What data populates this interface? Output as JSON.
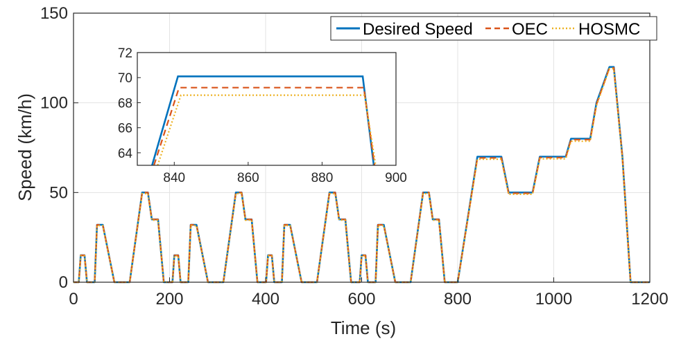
{
  "chart_data": [
    {
      "type": "line",
      "xlabel": "Time (s)",
      "ylabel": "Speed (km/h)",
      "xlim": [
        0,
        1200
      ],
      "ylim": [
        0,
        150
      ],
      "xticks": [
        "0",
        "200",
        "400",
        "600",
        "800",
        "1000",
        "1200"
      ],
      "yticks": [
        "0",
        "50",
        "100",
        "150"
      ],
      "grid": true,
      "legend_position": "top-right",
      "series": [
        {
          "name": "Desired Speed",
          "color": "#0072BD",
          "style": "solid"
        },
        {
          "name": "OEC",
          "color": "#D95319",
          "style": "dashed"
        },
        {
          "name": "HOSMC",
          "color": "#EDB120",
          "style": "dotted"
        }
      ],
      "x": [
        0,
        11,
        15,
        23,
        28,
        44,
        49,
        61,
        85,
        96,
        117,
        143,
        155,
        163,
        176,
        188,
        195,
        206,
        210,
        218,
        223,
        239,
        244,
        256,
        280,
        291,
        312,
        338,
        350,
        358,
        371,
        383,
        390,
        401,
        405,
        413,
        418,
        434,
        439,
        451,
        475,
        486,
        507,
        533,
        545,
        553,
        566,
        578,
        585,
        596,
        600,
        608,
        613,
        629,
        634,
        646,
        670,
        681,
        702,
        728,
        740,
        748,
        761,
        773,
        780,
        794,
        800,
        841,
        891,
        906,
        956,
        971,
        980,
        1025,
        1036,
        1076,
        1089,
        1116,
        1125,
        1143,
        1160,
        1170,
        1180,
        1200
      ],
      "series_values": {
        "Desired Speed": [
          0,
          0,
          15,
          15,
          0,
          0,
          32,
          32,
          0,
          0,
          0,
          50,
          50,
          35,
          35,
          0,
          0,
          0,
          15,
          15,
          0,
          0,
          32,
          32,
          0,
          0,
          0,
          50,
          50,
          35,
          35,
          0,
          0,
          0,
          15,
          15,
          0,
          0,
          32,
          32,
          0,
          0,
          0,
          50,
          50,
          35,
          35,
          0,
          0,
          0,
          15,
          15,
          0,
          0,
          32,
          32,
          0,
          0,
          0,
          50,
          50,
          35,
          35,
          0,
          0,
          0,
          0,
          70,
          70,
          50,
          50,
          70,
          70,
          70,
          80,
          80,
          100,
          120,
          120,
          70,
          0,
          0,
          0,
          0
        ],
        "OEC": [
          0,
          0,
          15,
          15,
          0,
          0,
          32,
          32,
          0,
          0,
          0,
          50,
          50,
          35,
          35,
          0,
          0,
          0,
          15,
          15,
          0,
          0,
          32,
          32,
          0,
          0,
          0,
          50,
          50,
          35,
          35,
          0,
          0,
          0,
          15,
          15,
          0,
          0,
          32,
          32,
          0,
          0,
          0,
          50,
          50,
          35,
          35,
          0,
          0,
          0,
          15,
          15,
          0,
          0,
          32,
          32,
          0,
          0,
          0,
          50,
          50,
          35,
          35,
          0,
          0,
          0,
          0,
          69.3,
          69.3,
          49.6,
          49.6,
          69.5,
          69.5,
          69.5,
          79.5,
          79.5,
          99.2,
          119.5,
          119.5,
          70,
          0,
          0,
          0,
          0
        ],
        "HOSMC": [
          0,
          0,
          14.7,
          14.7,
          0,
          0,
          31.6,
          31.6,
          0,
          0,
          0,
          49.4,
          49.4,
          34.6,
          34.6,
          0,
          0,
          0,
          14.7,
          14.7,
          0,
          0,
          31.6,
          31.6,
          0,
          0,
          0,
          49.4,
          49.4,
          34.6,
          34.6,
          0,
          0,
          0,
          14.7,
          14.7,
          0,
          0,
          31.6,
          31.6,
          0,
          0,
          0,
          49.4,
          49.4,
          34.6,
          34.6,
          0,
          0,
          0,
          14.7,
          14.7,
          0,
          0,
          31.6,
          31.6,
          0,
          0,
          0,
          49.4,
          49.4,
          34.6,
          34.6,
          0,
          0,
          0,
          0,
          68.6,
          68.6,
          49,
          49,
          68.8,
          68.8,
          68.8,
          78.6,
          78.6,
          98.4,
          119,
          119,
          69,
          0,
          0,
          0,
          0
        ]
      }
    },
    {
      "type": "line",
      "inset": true,
      "xlim": [
        830,
        900
      ],
      "ylim": [
        63,
        72
      ],
      "xticks": [
        "840",
        "860",
        "880",
        "900"
      ],
      "yticks": [
        "64",
        "66",
        "68",
        "70",
        "72"
      ],
      "grid": false,
      "series": [
        {
          "name": "Desired Speed",
          "x": [
            834,
            841,
            891,
            894
          ],
          "values": [
            63,
            70.1,
            70.1,
            63
          ]
        },
        {
          "name": "OEC",
          "x": [
            834.5,
            841.3,
            891.3,
            894.2
          ],
          "values": [
            63,
            69.2,
            69.2,
            63
          ]
        },
        {
          "name": "HOSMC",
          "x": [
            835.5,
            841.8,
            891.5,
            894.5
          ],
          "values": [
            63,
            68.6,
            68.6,
            63
          ]
        }
      ]
    }
  ]
}
